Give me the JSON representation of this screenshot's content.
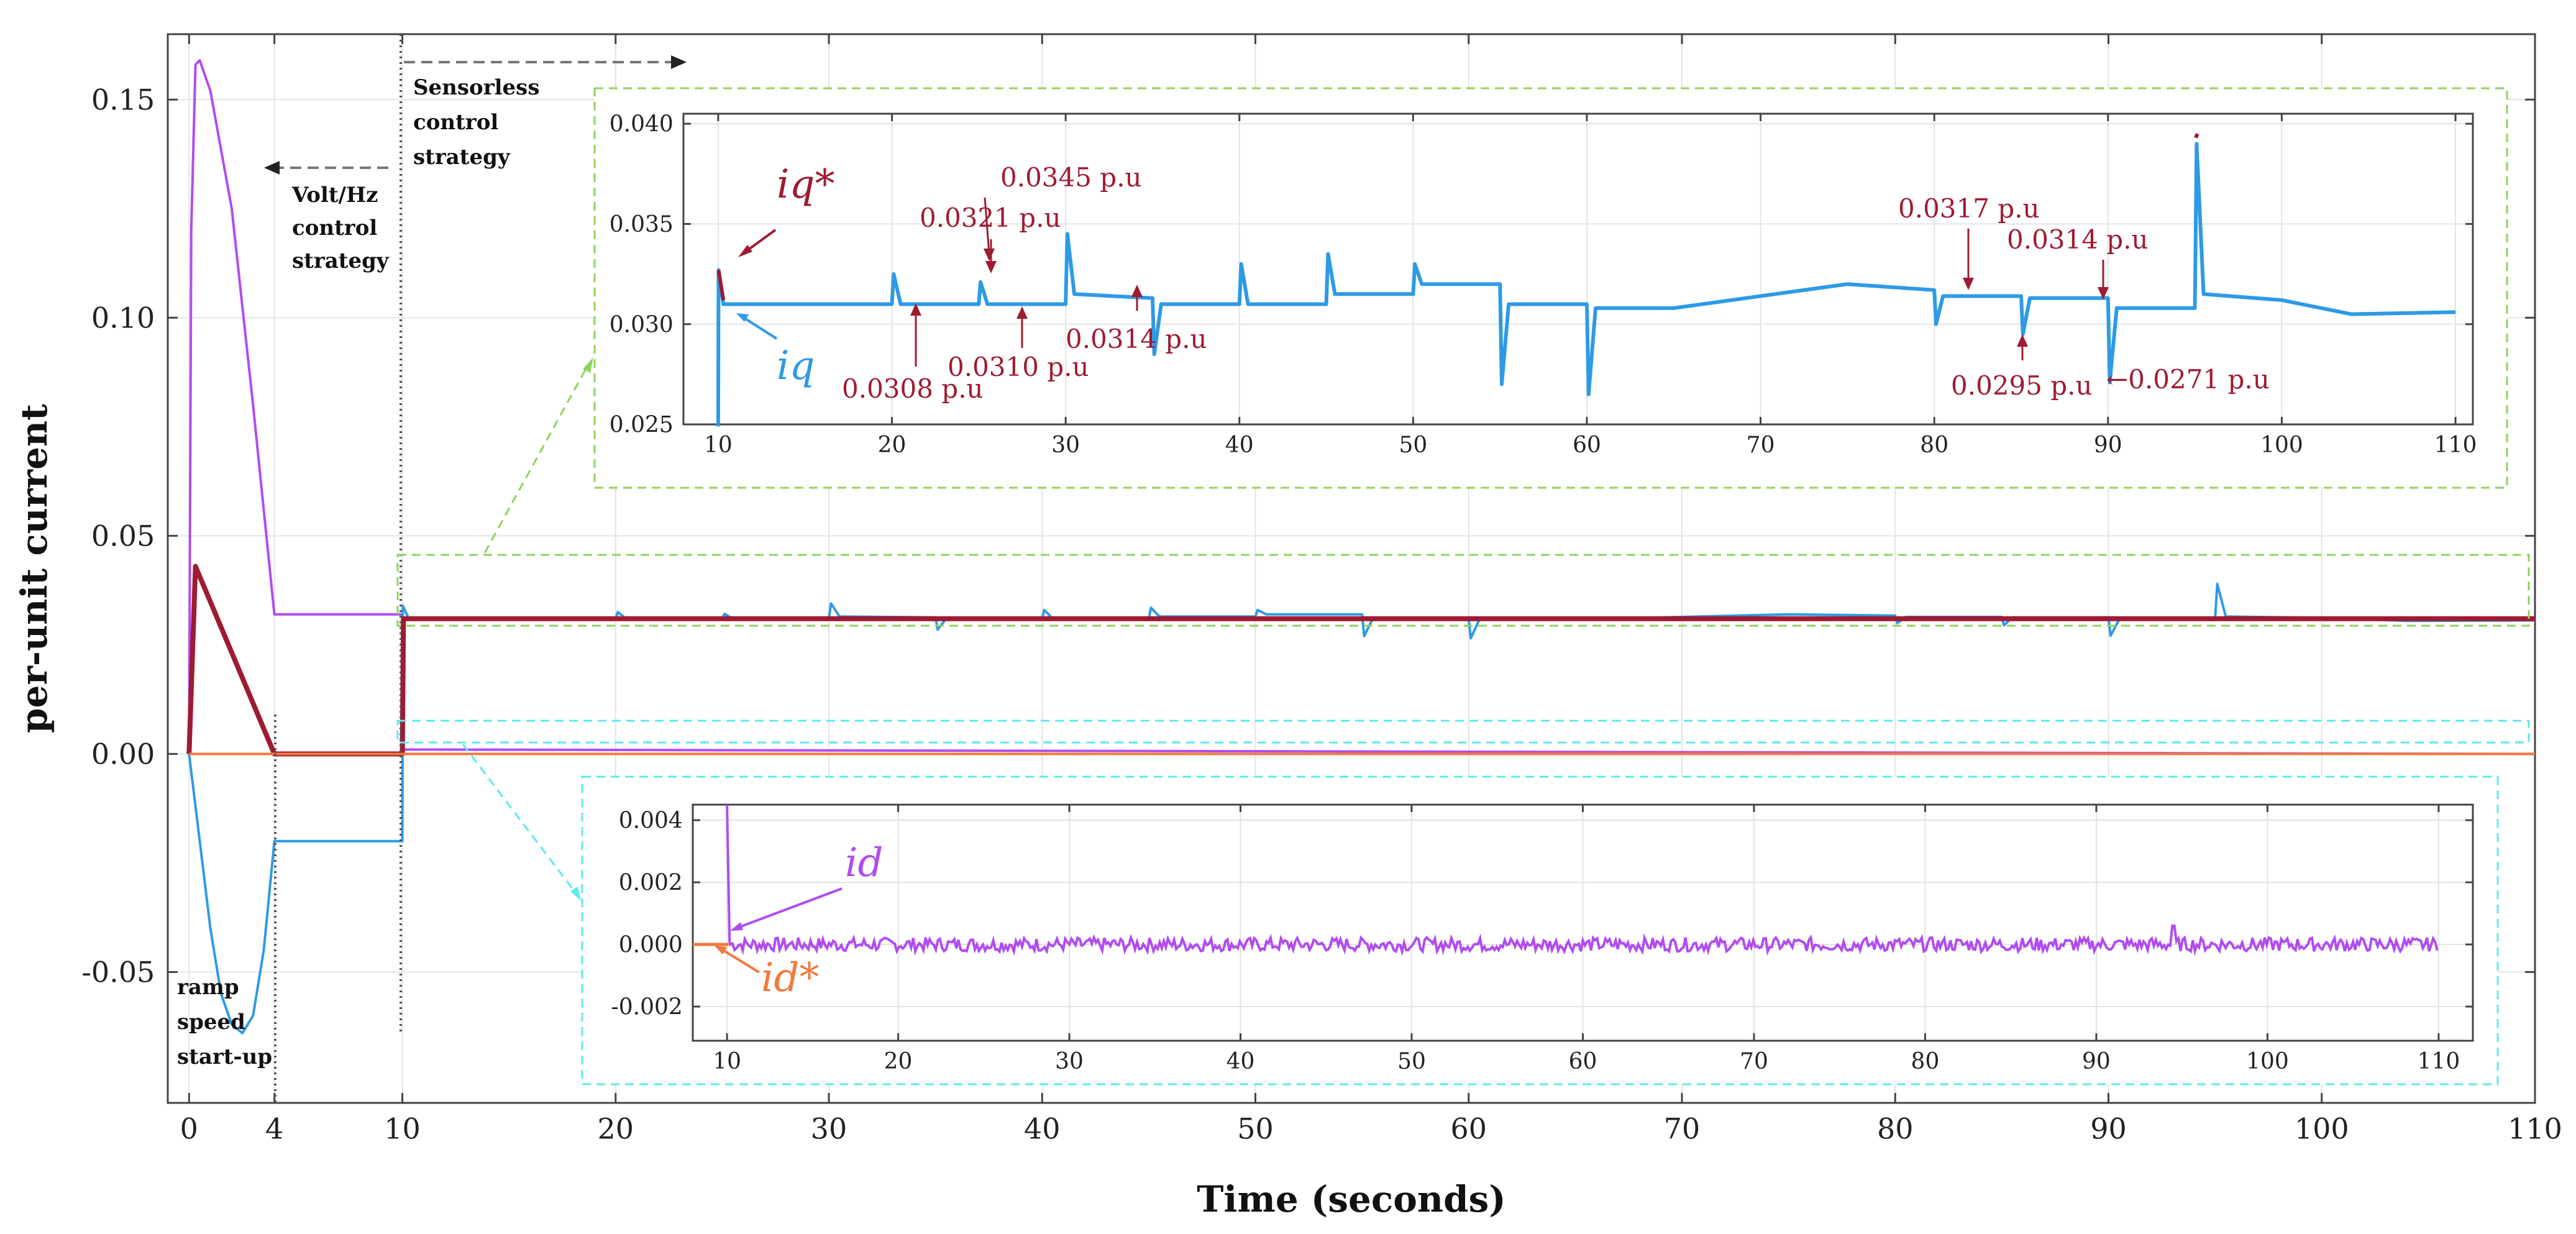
{
  "chart_data": [
    {
      "id": "main",
      "type": "line",
      "xlabel": "Time (seconds)",
      "ylabel": "per-unit current",
      "xlim": [
        -1,
        110
      ],
      "ylim": [
        -0.08,
        0.165
      ],
      "xticks": [
        0,
        4,
        10,
        20,
        30,
        40,
        50,
        60,
        70,
        80,
        90,
        100,
        110
      ],
      "xtick_labels": [
        "0",
        "4",
        "10",
        "20",
        "30",
        "40",
        "50",
        "60",
        "70",
        "80",
        "90",
        "100",
        "110"
      ],
      "yticks": [
        -0.05,
        0.0,
        0.05,
        0.1,
        0.15
      ],
      "ytick_labels": [
        "-0.05",
        "0.00",
        "0.05",
        "0.10",
        "0.15"
      ],
      "series": [
        {
          "name": "id",
          "color": "#b14cf0",
          "points": [
            [
              0,
              0
            ],
            [
              0.1,
              0.12
            ],
            [
              0.3,
              0.158
            ],
            [
              0.5,
              0.159
            ],
            [
              1,
              0.152
            ],
            [
              2,
              0.125
            ],
            [
              3,
              0.08
            ],
            [
              4,
              0.032
            ],
            [
              10,
              0.032
            ],
            [
              10.05,
              0.001
            ],
            [
              110,
              0.0
            ]
          ]
        },
        {
          "name": "iq",
          "color": "#2e9ae6",
          "points": [
            [
              0,
              0
            ],
            [
              0.5,
              -0.02
            ],
            [
              1,
              -0.04
            ],
            [
              1.5,
              -0.055
            ],
            [
              2,
              -0.062
            ],
            [
              2.5,
              -0.064
            ],
            [
              3,
              -0.06
            ],
            [
              3.5,
              -0.045
            ],
            [
              4,
              -0.02
            ],
            [
              10,
              -0.02
            ],
            [
              10.02,
              0.034
            ],
            [
              10.3,
              0.031
            ],
            [
              20,
              0.031
            ],
            [
              20.1,
              0.0325
            ],
            [
              20.5,
              0.031
            ],
            [
              25,
              0.031
            ],
            [
              25.1,
              0.0321
            ],
            [
              25.5,
              0.031
            ],
            [
              30,
              0.031
            ],
            [
              30.1,
              0.0345
            ],
            [
              30.5,
              0.0315
            ],
            [
              35,
              0.0313
            ],
            [
              35.1,
              0.0285
            ],
            [
              35.5,
              0.031
            ],
            [
              40,
              0.031
            ],
            [
              40.1,
              0.033
            ],
            [
              40.5,
              0.031
            ],
            [
              45,
              0.031
            ],
            [
              45.1,
              0.0335
            ],
            [
              45.5,
              0.0315
            ],
            [
              50,
              0.0315
            ],
            [
              50.1,
              0.033
            ],
            [
              50.5,
              0.032
            ],
            [
              55,
              0.032
            ],
            [
              55.1,
              0.027
            ],
            [
              55.5,
              0.031
            ],
            [
              60,
              0.031
            ],
            [
              60.1,
              0.0265
            ],
            [
              60.5,
              0.0308
            ],
            [
              65,
              0.0308
            ],
            [
              75,
              0.032
            ],
            [
              80,
              0.0317
            ],
            [
              80.1,
              0.03
            ],
            [
              80.5,
              0.0314
            ],
            [
              85,
              0.0314
            ],
            [
              85.1,
              0.0295
            ],
            [
              85.5,
              0.0313
            ],
            [
              90,
              0.0313
            ],
            [
              90.1,
              0.0271
            ],
            [
              90.5,
              0.0308
            ],
            [
              95,
              0.0308
            ],
            [
              95.1,
              0.039
            ],
            [
              95.5,
              0.0315
            ],
            [
              100,
              0.0312
            ],
            [
              104,
              0.0305
            ],
            [
              110,
              0.0306
            ]
          ]
        },
        {
          "name": "iq*",
          "color": "#9e1b32",
          "points": [
            [
              0,
              0
            ],
            [
              0.3,
              0.043
            ],
            [
              4,
              0.0
            ],
            [
              10,
              0.0
            ],
            [
              10.05,
              0.031
            ],
            [
              110,
              0.031
            ]
          ]
        },
        {
          "name": "id*",
          "color": "#f07a3c",
          "points": [
            [
              0,
              0
            ],
            [
              110,
              0
            ]
          ]
        }
      ],
      "annotations": [
        "Volt/Hz control strategy",
        "Sensorless control strategy",
        "ramp speed start-up"
      ]
    },
    {
      "id": "inset_q",
      "type": "line",
      "xlim": [
        8,
        111
      ],
      "ylim": [
        0.025,
        0.0405
      ],
      "xticks": [
        10,
        20,
        30,
        40,
        50,
        60,
        70,
        80,
        90,
        100,
        110
      ],
      "xtick_labels": [
        "10",
        "20",
        "30",
        "40",
        "50",
        "60",
        "70",
        "80",
        "90",
        "100",
        "110"
      ],
      "yticks": [
        0.025,
        0.03,
        0.035,
        0.04
      ],
      "ytick_labels": [
        "0.025",
        "0.030",
        "0.035",
        "0.040"
      ],
      "series_labels": {
        "iq_star": "iq*",
        "iq": "iq"
      },
      "annotations": [
        {
          "text": "0.0345 p.u",
          "x": 30,
          "y": 0.0345
        },
        {
          "text": "0.0321 p.u",
          "x": 25,
          "y": 0.0321
        },
        {
          "text": "0.0308 p.u",
          "x": 21,
          "y": 0.0308
        },
        {
          "text": "0.0310 p.u",
          "x": 27,
          "y": 0.031
        },
        {
          "text": "0.0314 p.u",
          "x": 34,
          "y": 0.0314
        },
        {
          "text": "0.0317 p.u",
          "x": 82.5,
          "y": 0.0317
        },
        {
          "text": "0.0314 p.u",
          "x": 88.5,
          "y": 0.0314
        },
        {
          "text": "0.0295 p.u",
          "x": 85,
          "y": 0.0295
        },
        {
          "text": "←0.0271 p.u",
          "x": 90.5,
          "y": 0.0271
        }
      ]
    },
    {
      "id": "inset_d",
      "type": "line",
      "xlim": [
        8,
        112
      ],
      "ylim": [
        -0.0031,
        0.0045
      ],
      "xticks": [
        10,
        20,
        30,
        40,
        50,
        60,
        70,
        80,
        90,
        100,
        110
      ],
      "xtick_labels": [
        "10",
        "20",
        "30",
        "40",
        "50",
        "60",
        "70",
        "80",
        "90",
        "100",
        "110"
      ],
      "yticks": [
        -0.002,
        0.0,
        0.002,
        0.004
      ],
      "ytick_labels": [
        "-0.002",
        "0.000",
        "0.002",
        "0.004"
      ],
      "series_labels": {
        "id": "id",
        "id_star": "id*"
      }
    }
  ],
  "labels": {
    "volt_hz": [
      "Volt/Hz",
      "control",
      "strategy"
    ],
    "sensorless": [
      "Sensorless",
      "control",
      "strategy"
    ],
    "ramp": [
      "ramp",
      "speed",
      "start-up"
    ]
  },
  "colors": {
    "id": "#b14cf0",
    "iq": "#2e9ae6",
    "iq_star": "#9e1b32",
    "id_star": "#f07a3c",
    "green_box": "#8fd35a",
    "cyan_box": "#5ee8ee"
  }
}
